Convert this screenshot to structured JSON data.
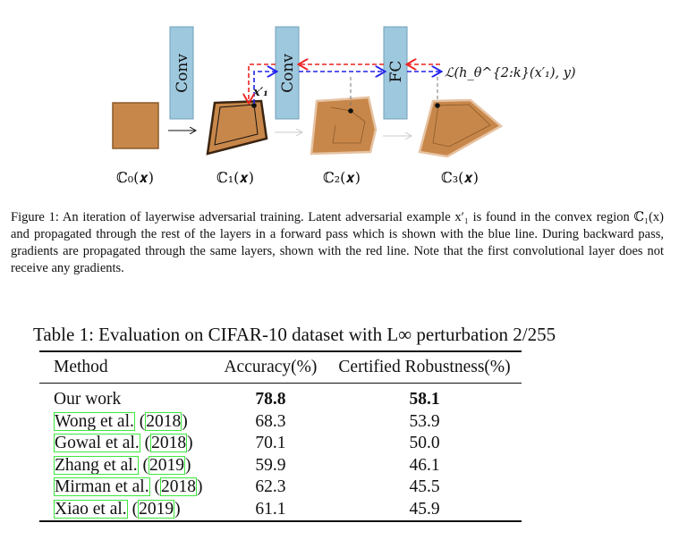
{
  "figure": {
    "layers": [
      "Conv",
      "Conv",
      "FC"
    ],
    "regions": [
      "ℂ₀(𝒙)",
      "ℂ₁(𝒙)",
      "ℂ₂(𝒙)",
      "ℂ₃(𝒙)"
    ],
    "latent_label": "x′₁",
    "loss_label": "ℒ(h_θ^{2:k}(x′₁), y)",
    "colors": {
      "layer_fill": "#9ec8dd",
      "region_fill": "#c8874a",
      "forward": "#2222ee",
      "backward": "#ee2222"
    }
  },
  "caption": {
    "label": "Figure 1:",
    "text": "An iteration of layerwise adversarial training. Latent adversarial example x′₁ is found in the convex region ℂ₁(x) and propagated through the rest of the layers in a forward pass which is shown with the blue line. During backward pass, gradients are propagated through the same layers, shown with the red line. Note that the first convolutional layer does not receive any gradients."
  },
  "table": {
    "caption": "Table 1: Evaluation on CIFAR-10 dataset with L∞ perturbation 2/255",
    "headers": [
      "Method",
      "Accuracy(%)",
      "Certified Robustness(%)"
    ],
    "rows": [
      {
        "author": "Our work",
        "year": "",
        "accuracy": "78.8",
        "robustness": "58.1"
      },
      {
        "author": "Wong et al.",
        "year": "2018",
        "accuracy": "68.3",
        "robustness": "53.9"
      },
      {
        "author": "Gowal et al.",
        "year": "2018",
        "accuracy": "70.1",
        "robustness": "50.0"
      },
      {
        "author": "Zhang et al.",
        "year": "2019",
        "accuracy": "59.9",
        "robustness": "46.1"
      },
      {
        "author": "Mirman et al.",
        "year": "2018",
        "accuracy": "62.3",
        "robustness": "45.5"
      },
      {
        "author": "Xiao et al.",
        "year": "2019",
        "accuracy": "61.1",
        "robustness": "45.9"
      }
    ]
  }
}
